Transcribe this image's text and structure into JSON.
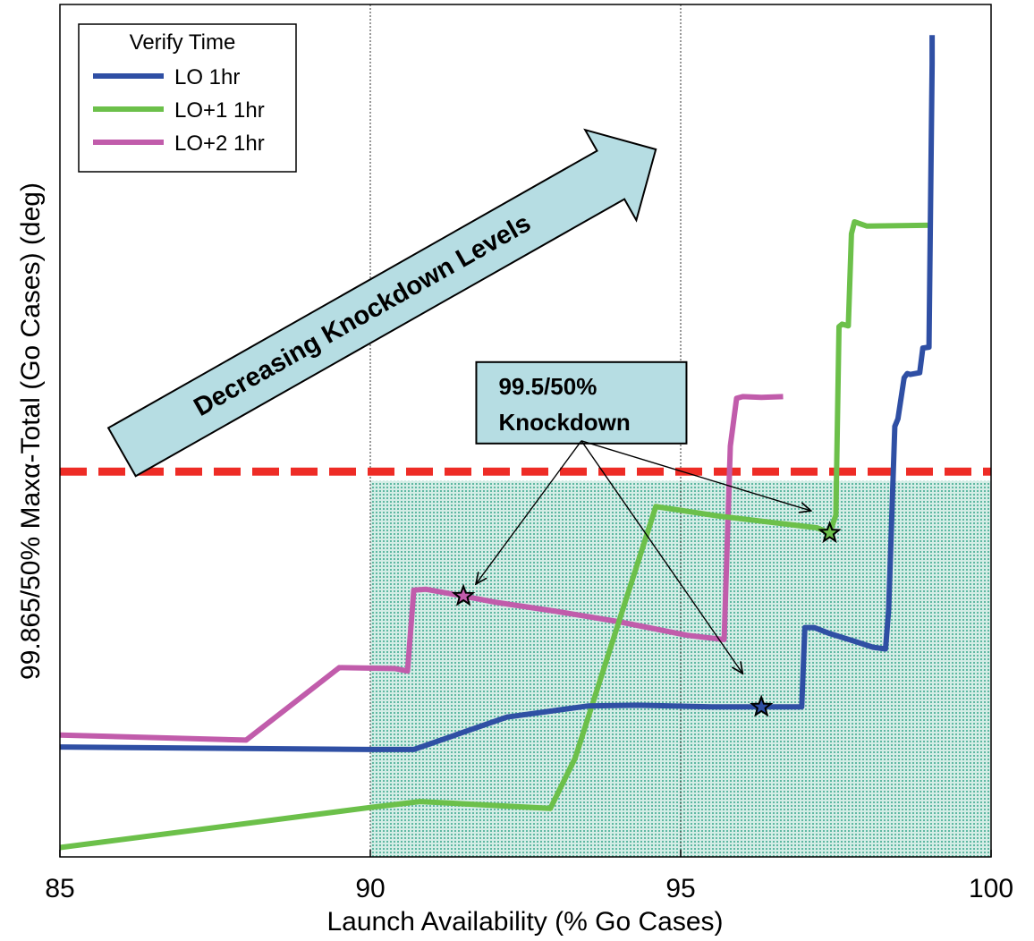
{
  "chart_data": {
    "type": "line",
    "xlabel": "Launch Availability (% Go Cases)",
    "ylabel": "99.865/50% Maxα-Total (Go Cases) (deg)",
    "xlim": [
      85,
      100
    ],
    "ylim": [
      0,
      100
    ],
    "x_ticks": [
      "85",
      "90",
      "95",
      "100"
    ],
    "vertical_gridlines_at": [
      90,
      95
    ],
    "y_tick_labels_shown": false,
    "legend": {
      "title": "Verify Time",
      "placement": "top-left"
    },
    "series": [
      {
        "name": "LO 1hr",
        "color": "#2f4fa4",
        "x": [
          85,
          90,
          90.7,
          92.2,
          93.5,
          94.3,
          95.5,
          96.9,
          96.95,
          97.0,
          97.15,
          97.4,
          97.8,
          98.1,
          98.3,
          98.35,
          98.45,
          98.5,
          98.6,
          98.65,
          98.7,
          98.85,
          98.9,
          99.0,
          99.05,
          99.05
        ],
        "y": [
          12.9,
          12.6,
          12.6,
          16.4,
          17.7,
          17.8,
          17.6,
          17.6,
          17.6,
          26.9,
          26.9,
          26.2,
          25.3,
          24.6,
          24.4,
          29.0,
          50.5,
          51.4,
          56.2,
          56.7,
          56.6,
          56.8,
          59.7,
          59.8,
          93.0,
          96.4
        ]
      },
      {
        "name": "LO+1 1hr",
        "color": "#6cc04a",
        "x": [
          85,
          90,
          90.8,
          92.9,
          93.3,
          94.6,
          95.6,
          97.2,
          97.4,
          97.5,
          97.55,
          97.6,
          97.7,
          97.75,
          97.8,
          98.0,
          99.05
        ],
        "y": [
          1.1,
          5.8,
          6.5,
          5.7,
          11.6,
          41.1,
          40.0,
          38.6,
          38.0,
          40.1,
          62.2,
          62.5,
          62.3,
          73.1,
          74.5,
          74.0,
          74.1
        ]
      },
      {
        "name": "LO+2 1hr",
        "color": "#c15cab",
        "x": [
          85,
          88,
          89.5,
          90.4,
          90.6,
          90.7,
          90.9,
          91.5,
          92.0,
          93.0,
          94.0,
          95.1,
          95.7,
          95.8,
          95.9,
          96.0,
          96.3,
          96.65
        ],
        "y": [
          14.3,
          13.7,
          22.2,
          22.1,
          21.8,
          31.3,
          31.4,
          30.6,
          29.9,
          28.8,
          27.6,
          26.0,
          25.5,
          48.2,
          53.8,
          54.0,
          53.9,
          54.0
        ]
      }
    ],
    "reference_line": {
      "label": "",
      "y": 45.2,
      "style": "dashed",
      "color": "#ee2c26"
    },
    "shaded_region": {
      "x_range": [
        90,
        100
      ],
      "y_range": [
        0,
        44.1
      ],
      "color": "#7fc9b6"
    },
    "markers": [
      {
        "series": "LO+2 1hr",
        "x": 91.5,
        "y": 30.6,
        "shape": "star"
      },
      {
        "series": "LO 1hr",
        "x": 96.3,
        "y": 17.6,
        "shape": "star"
      },
      {
        "series": "LO+1 1hr",
        "x": 97.4,
        "y": 38.0,
        "shape": "star"
      }
    ],
    "annotations": [
      {
        "text": "Decreasing Knockdown Levels",
        "kind": "arrow-banner",
        "from": [
          86.0,
          47.5
        ],
        "to": [
          94.6,
          83.0
        ]
      },
      {
        "text_lines": [
          "99.5/50%",
          "Knockdown"
        ],
        "kind": "callout-box",
        "anchor": [
          93.4,
          48.5
        ],
        "arrows_to": [
          [
            91.7,
            32.0
          ],
          [
            96.0,
            21.5
          ],
          [
            97.1,
            40.6
          ]
        ]
      }
    ]
  }
}
